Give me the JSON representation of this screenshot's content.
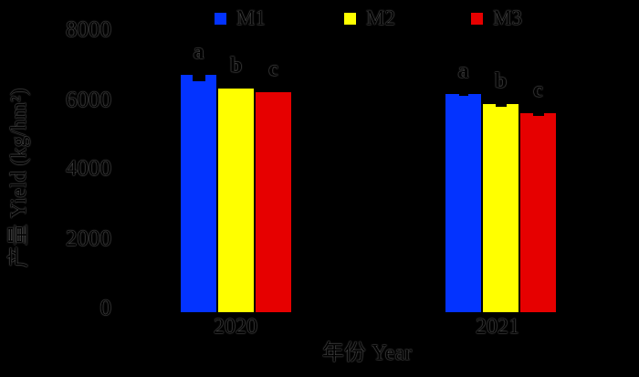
{
  "figure": {
    "background_color": "#000000",
    "text_render": "black glyphs with faint gray anti-alias halo on black background"
  },
  "legend": {
    "items": [
      {
        "label": "M1",
        "color": "#0333ff"
      },
      {
        "label": "M2",
        "color": "#ffff00"
      },
      {
        "label": "M3",
        "color": "#e60000"
      }
    ]
  },
  "y_axis": {
    "label": "产量 Yield (kg/hm²)",
    "ticks": [
      "8000",
      "6000",
      "4000",
      "2000",
      "0"
    ],
    "range": [
      0,
      8000
    ]
  },
  "x_axis": {
    "label": "年份 Year",
    "categories": [
      "2020",
      "2021"
    ]
  },
  "chart_data": {
    "type": "bar",
    "categories": [
      "2020",
      "2021"
    ],
    "series": [
      {
        "name": "M1",
        "color": "#0333ff",
        "values": [
          6800,
          6250
        ]
      },
      {
        "name": "M2",
        "color": "#ffff00",
        "values": [
          6400,
          5950
        ]
      },
      {
        "name": "M3",
        "color": "#e60000",
        "values": [
          6300,
          5700
        ]
      }
    ],
    "sig_letters": {
      "2020": [
        "a",
        "b",
        "c"
      ],
      "2021": [
        "a",
        "b",
        "c"
      ]
    },
    "title": "",
    "xlabel": "年份 Year",
    "ylabel": "产量 Yield (kg/hm²)",
    "ylim": [
      0,
      8000
    ],
    "grid": false,
    "legend_position": "top",
    "error_bars_visible": true
  }
}
